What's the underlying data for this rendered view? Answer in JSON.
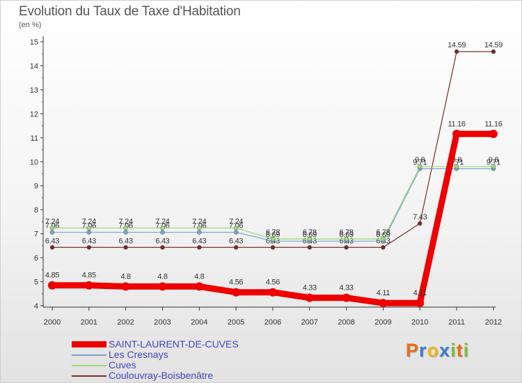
{
  "chart_data": {
    "type": "line",
    "title": "Evolution du Taux de Taxe d'Habitation",
    "subtitle": "(en %)",
    "categories": [
      "2000",
      "2001",
      "2002",
      "2003",
      "2004",
      "2005",
      "2006",
      "2007",
      "2008",
      "2009",
      "2010",
      "2011",
      "2012"
    ],
    "ylim": [
      4,
      15
    ],
    "yticks": [
      "4",
      "5",
      "6",
      "7",
      "8",
      "9",
      "10",
      "11",
      "12",
      "13",
      "14",
      "15"
    ],
    "grid": false,
    "legend_position": "bottom-left",
    "series": [
      {
        "name": "Coulouvray-Boisbenâtre",
        "color": "#7a2a2a",
        "values": [
          6.43,
          6.43,
          6.43,
          6.43,
          6.43,
          6.43,
          6.43,
          6.43,
          6.43,
          6.43,
          7.43,
          14.59,
          14.59
        ],
        "labels": [
          "6.43",
          "6.43",
          "6.43",
          "6.43",
          "6.43",
          "6.43",
          "6.43",
          "6.43",
          "6.43",
          "6.43",
          "7.43",
          "14.59",
          "14.59"
        ]
      },
      {
        "name": "Les Cresnays",
        "color": "#7aa4c8",
        "values": [
          7.06,
          7.06,
          7.06,
          7.06,
          7.06,
          7.06,
          6.69,
          6.69,
          6.69,
          6.69,
          9.71,
          9.71,
          9.71
        ],
        "labels": [
          "7.06",
          "7.06",
          "7.06",
          "7.06",
          "7.06",
          "7.06",
          "6.69",
          "6.69",
          "6.69",
          "6.69",
          "9.71",
          "9.71",
          "9.71"
        ]
      },
      {
        "name": "Cuves",
        "color": "#99dd77",
        "values": [
          7.24,
          7.24,
          7.24,
          7.24,
          7.24,
          7.24,
          6.78,
          6.78,
          6.78,
          6.78,
          9.8,
          9.8,
          9.8
        ],
        "labels": [
          "7.24",
          "7.24",
          "7.24",
          "7.24",
          "7.24",
          "7.24",
          "6.78",
          "6.78",
          "6.78",
          "6.78",
          "9.8",
          "9.8",
          "9.8"
        ]
      },
      {
        "name": "SAINT-LAURENT-DE-CUVES",
        "color": "#ee0000",
        "values": [
          4.85,
          4.85,
          4.8,
          4.8,
          4.8,
          4.56,
          4.56,
          4.33,
          4.33,
          4.11,
          4.11,
          11.16,
          11.16
        ],
        "labels": [
          "4.85",
          "4.85",
          "4.8",
          "4.8",
          "4.8",
          "4.56",
          "4.56",
          "4.33",
          "4.33",
          "4.11",
          "4.11",
          "11.16",
          "11.16"
        ]
      }
    ],
    "legend_order": [
      "SAINT-LAURENT-DE-CUVES",
      "Les Cresnays",
      "Cuves",
      "Coulouvray-Boisbenâtre"
    ]
  },
  "legend": {
    "items": [
      {
        "label": "SAINT-LAURENT-DE-CUVES",
        "color": "#ee0000",
        "thick": true
      },
      {
        "label": "Les Cresnays",
        "color": "#7aa4c8",
        "thick": false
      },
      {
        "label": "Cuves",
        "color": "#99dd77",
        "thick": false
      },
      {
        "label": "Coulouvray-Boisbenâtre",
        "color": "#7a2a2a",
        "thick": false
      }
    ]
  },
  "logo": {
    "letters": [
      "P",
      "r",
      "o",
      "x",
      "i",
      "t",
      "i"
    ],
    "colors": [
      "#e86e1a",
      "#3a7bd5",
      "#f2b51b",
      "#3a7bd5",
      "#88b93a",
      "#e86e1a",
      "#88b93a"
    ]
  }
}
